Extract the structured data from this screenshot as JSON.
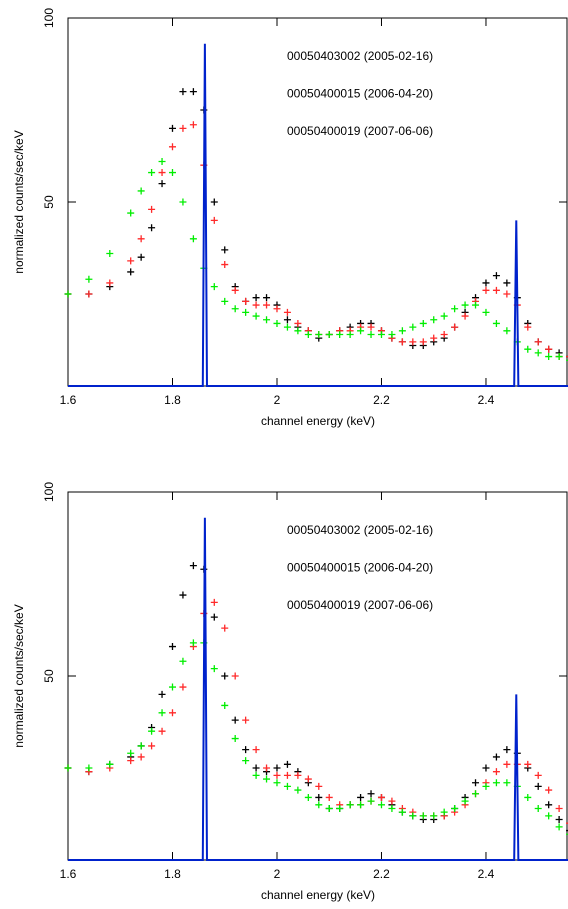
{
  "chart_data": [
    {
      "type": "scatter",
      "xlabel": "channel energy (keV)",
      "ylabel": "normalized counts/sec/keV",
      "xlim": [
        1.6,
        2.557
      ],
      "ylim": [
        0,
        100
      ],
      "xticks": [
        1.6,
        1.8,
        2,
        2.2,
        2.4
      ],
      "yticks": [
        50,
        100
      ],
      "x": [
        1.6,
        1.64,
        1.68,
        1.72,
        1.74,
        1.76,
        1.78,
        1.8,
        1.82,
        1.84,
        1.86,
        1.88,
        1.9,
        1.92,
        1.94,
        1.96,
        1.98,
        2.0,
        2.02,
        2.04,
        2.06,
        2.08,
        2.1,
        2.12,
        2.14,
        2.16,
        2.18,
        2.2,
        2.22,
        2.24,
        2.26,
        2.28,
        2.3,
        2.32,
        2.34,
        2.36,
        2.38,
        2.4,
        2.42,
        2.44,
        2.46,
        2.48,
        2.5,
        2.52,
        2.54,
        2.56
      ],
      "series": [
        {
          "name": "00050403002 (2005-02-16)",
          "color": "#000000",
          "values": [
            25,
            25,
            27,
            31,
            35,
            43,
            55,
            70,
            80,
            80,
            75,
            50,
            37,
            27,
            23,
            24,
            24,
            22,
            18,
            16,
            15,
            13,
            14,
            15,
            16,
            17,
            17,
            15,
            13,
            12,
            11,
            11,
            12,
            13,
            16,
            20,
            24,
            28,
            30,
            28,
            24,
            17,
            12,
            10,
            9,
            8
          ]
        },
        {
          "name": "00050400015 (2006-04-20)",
          "color": "#ff2a2a",
          "values": [
            25,
            25,
            28,
            34,
            40,
            48,
            58,
            65,
            70,
            71,
            60,
            45,
            33,
            26,
            23,
            22,
            22,
            21,
            20,
            17,
            15,
            14,
            14,
            15,
            15,
            16,
            16,
            15,
            13,
            12,
            12,
            12,
            13,
            14,
            16,
            19,
            23,
            26,
            26,
            25,
            22,
            16,
            12,
            10,
            8,
            8
          ]
        },
        {
          "name": "00050400019 (2007-06-06)",
          "color": "#00ee00",
          "values": [
            25,
            29,
            36,
            47,
            53,
            58,
            61,
            58,
            50,
            40,
            32,
            27,
            23,
            21,
            20,
            19,
            18,
            17,
            16,
            15,
            14,
            14,
            14,
            14,
            14,
            15,
            14,
            14,
            14,
            15,
            16,
            17,
            18,
            19,
            21,
            22,
            22,
            20,
            17,
            15,
            12,
            10,
            9,
            8,
            8,
            7
          ]
        },
        {
          "type": "line",
          "color": "#0022cc",
          "x": [
            1.6,
            1.858,
            1.862,
            1.866,
            2.454,
            2.458,
            2.462,
            2.557
          ],
          "values": [
            0,
            0,
            93,
            0,
            0,
            45,
            0,
            0
          ]
        }
      ]
    },
    {
      "type": "scatter",
      "xlabel": "channel energy (keV)",
      "ylabel": "normalized counts/sec/keV",
      "xlim": [
        1.6,
        2.557
      ],
      "ylim": [
        0,
        100
      ],
      "xticks": [
        1.6,
        1.8,
        2,
        2.2,
        2.4
      ],
      "yticks": [
        50,
        100
      ],
      "x": [
        1.6,
        1.64,
        1.68,
        1.72,
        1.74,
        1.76,
        1.78,
        1.8,
        1.82,
        1.84,
        1.86,
        1.88,
        1.9,
        1.92,
        1.94,
        1.96,
        1.98,
        2.0,
        2.02,
        2.04,
        2.06,
        2.08,
        2.1,
        2.12,
        2.14,
        2.16,
        2.18,
        2.2,
        2.22,
        2.24,
        2.26,
        2.28,
        2.3,
        2.32,
        2.34,
        2.36,
        2.38,
        2.4,
        2.42,
        2.44,
        2.46,
        2.48,
        2.5,
        2.52,
        2.54,
        2.56
      ],
      "series": [
        {
          "name": "00050403002 (2005-02-16)",
          "color": "#000000",
          "values": [
            25,
            24,
            26,
            28,
            31,
            36,
            45,
            58,
            72,
            80,
            79,
            66,
            50,
            38,
            30,
            25,
            24,
            25,
            26,
            24,
            21,
            17,
            14,
            14,
            15,
            17,
            18,
            17,
            15,
            13,
            12,
            11,
            11,
            12,
            14,
            17,
            21,
            25,
            28,
            30,
            29,
            25,
            20,
            15,
            11,
            8
          ]
        },
        {
          "name": "00050400015 (2006-04-20)",
          "color": "#ff2a2a",
          "values": [
            25,
            24,
            25,
            27,
            28,
            31,
            35,
            40,
            47,
            58,
            67,
            70,
            63,
            50,
            38,
            30,
            25,
            23,
            23,
            23,
            22,
            20,
            17,
            15,
            15,
            15,
            16,
            17,
            16,
            14,
            13,
            12,
            12,
            12,
            13,
            15,
            18,
            21,
            24,
            26,
            26,
            26,
            23,
            19,
            14,
            10
          ]
        },
        {
          "name": "00050400019 (2007-06-06)",
          "color": "#00ee00",
          "values": [
            25,
            25,
            26,
            29,
            31,
            35,
            40,
            47,
            54,
            59,
            59,
            52,
            42,
            33,
            27,
            23,
            22,
            21,
            20,
            19,
            17,
            15,
            14,
            14,
            15,
            15,
            16,
            15,
            14,
            13,
            12,
            12,
            12,
            13,
            14,
            16,
            18,
            20,
            21,
            21,
            20,
            17,
            14,
            12,
            9,
            7
          ]
        },
        {
          "type": "line",
          "color": "#0022cc",
          "x": [
            1.6,
            1.858,
            1.862,
            1.866,
            2.454,
            2.458,
            2.462,
            2.557
          ],
          "values": [
            0,
            0,
            93,
            0,
            0,
            45,
            0,
            0
          ]
        }
      ]
    }
  ]
}
